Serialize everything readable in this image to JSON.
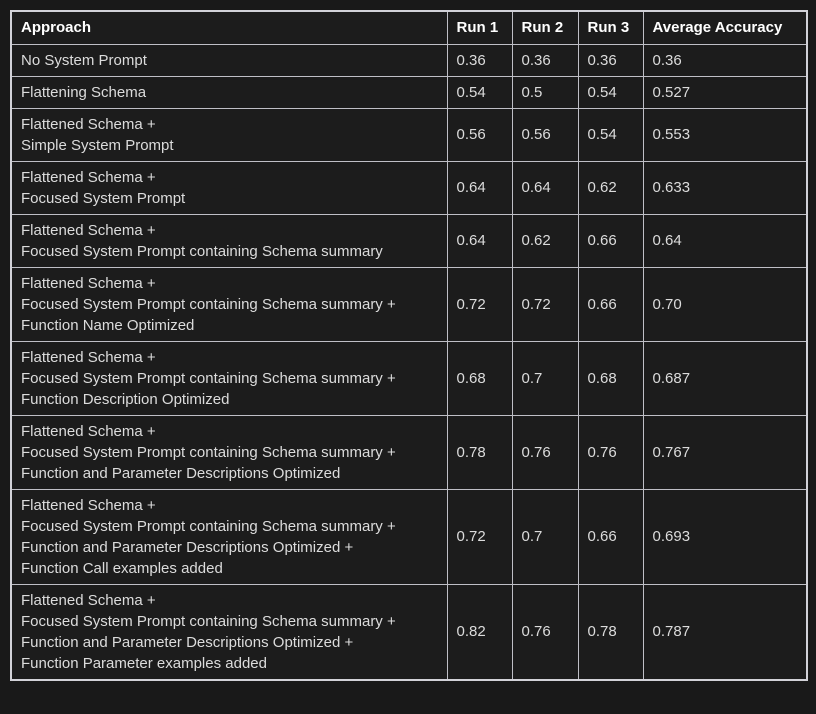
{
  "colors": {
    "page_background": "#191919",
    "cell_background": "#1c1c1c",
    "border": "#bfbfc6",
    "outer_border": "#d2d2d8",
    "header_text": "#ffffff",
    "cell_text": "#dcdcdc"
  },
  "table": {
    "columns": {
      "approach": "Approach",
      "run1": "Run 1",
      "run2": "Run 2",
      "run3": "Run 3",
      "avg": "Average Accuracy"
    },
    "rows": [
      {
        "approach": "No System Prompt",
        "run1": "0.36",
        "run2": "0.36",
        "run3": "0.36",
        "avg": "0.36"
      },
      {
        "approach": "Flattening Schema",
        "run1": "0.54",
        "run2": "0.5",
        "run3": "0.54",
        "avg": "0.527"
      },
      {
        "approach": "Flattened Schema +\nSimple System Prompt",
        "run1": "0.56",
        "run2": "0.56",
        "run3": "0.54",
        "avg": "0.553"
      },
      {
        "approach": "Flattened Schema +\nFocused System Prompt",
        "run1": "0.64",
        "run2": "0.64",
        "run3": "0.62",
        "avg": "0.633"
      },
      {
        "approach": "Flattened Schema +\nFocused System Prompt containing Schema summary",
        "run1": "0.64",
        "run2": "0.62",
        "run3": "0.66",
        "avg": "0.64"
      },
      {
        "approach": "Flattened Schema +\nFocused System Prompt containing Schema summary +\nFunction Name Optimized",
        "run1": "0.72",
        "run2": "0.72",
        "run3": "0.66",
        "avg": "0.70"
      },
      {
        "approach": "Flattened Schema +\nFocused System Prompt containing Schema summary +\nFunction Description Optimized",
        "run1": "0.68",
        "run2": "0.7",
        "run3": "0.68",
        "avg": "0.687"
      },
      {
        "approach": "Flattened Schema +\nFocused System Prompt containing Schema summary +\nFunction and Parameter Descriptions Optimized",
        "run1": "0.78",
        "run2": "0.76",
        "run3": "0.76",
        "avg": "0.767"
      },
      {
        "approach": "Flattened Schema +\nFocused System Prompt containing Schema summary +\nFunction and Parameter Descriptions Optimized +\nFunction Call examples added",
        "run1": "0.72",
        "run2": "0.7",
        "run3": "0.66",
        "avg": "0.693"
      },
      {
        "approach": "Flattened Schema +\nFocused System Prompt containing Schema summary +\nFunction and Parameter Descriptions Optimized +\nFunction Parameter examples added",
        "run1": "0.82",
        "run2": "0.76",
        "run3": "0.78",
        "avg": "0.787"
      }
    ]
  },
  "chart_data": {
    "type": "table",
    "title": "",
    "columns": [
      "Approach",
      "Run 1",
      "Run 2",
      "Run 3",
      "Average Accuracy"
    ],
    "rows": [
      [
        "No System Prompt",
        0.36,
        0.36,
        0.36,
        0.36
      ],
      [
        "Flattening Schema",
        0.54,
        0.5,
        0.54,
        0.527
      ],
      [
        "Flattened Schema + Simple System Prompt",
        0.56,
        0.56,
        0.54,
        0.553
      ],
      [
        "Flattened Schema + Focused System Prompt",
        0.64,
        0.64,
        0.62,
        0.633
      ],
      [
        "Flattened Schema + Focused System Prompt containing Schema summary",
        0.64,
        0.62,
        0.66,
        0.64
      ],
      [
        "Flattened Schema + Focused System Prompt containing Schema summary + Function Name Optimized",
        0.72,
        0.72,
        0.66,
        0.7
      ],
      [
        "Flattened Schema + Focused System Prompt containing Schema summary + Function Description Optimized",
        0.68,
        0.7,
        0.68,
        0.687
      ],
      [
        "Flattened Schema + Focused System Prompt containing Schema summary + Function and Parameter Descriptions Optimized",
        0.78,
        0.76,
        0.76,
        0.767
      ],
      [
        "Flattened Schema + Focused System Prompt containing Schema summary + Function and Parameter Descriptions Optimized + Function Call examples added",
        0.72,
        0.7,
        0.66,
        0.693
      ],
      [
        "Flattened Schema + Focused System Prompt containing Schema summary + Function and Parameter Descriptions Optimized + Function Parameter examples added",
        0.82,
        0.76,
        0.78,
        0.787
      ]
    ]
  }
}
